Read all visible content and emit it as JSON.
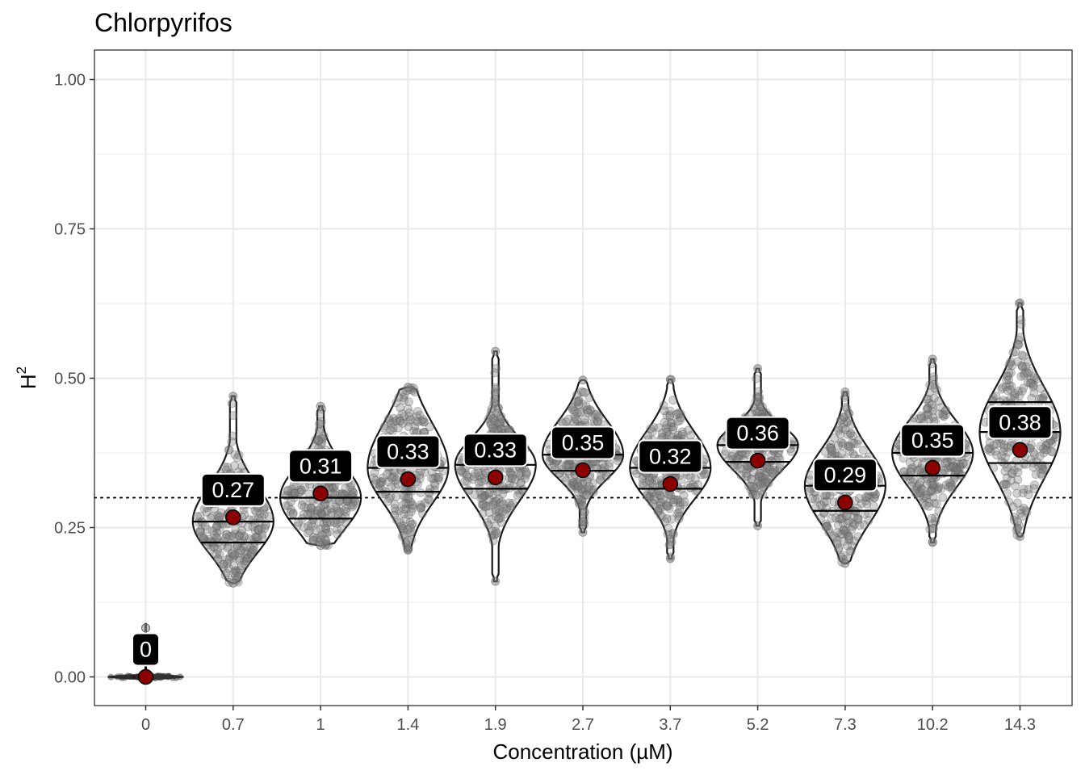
{
  "chart_data": {
    "type": "violin",
    "title": "Chlorpyrifos",
    "xlabel": "Concentration (µM)",
    "ylabel": "H",
    "ylabel_superscript": "2",
    "categories": [
      "0",
      "0.7",
      "1",
      "1.4",
      "1.9",
      "2.7",
      "3.7",
      "5.2",
      "7.3",
      "10.2",
      "14.3"
    ],
    "ylim": [
      -0.05,
      1.05
    ],
    "yticks": [
      0.0,
      0.25,
      0.5,
      0.75,
      1.0
    ],
    "ytick_labels": [
      "0.00",
      "0.25",
      "0.50",
      "0.75",
      "1.00"
    ],
    "threshold": 0.3,
    "grid": true,
    "series": [
      {
        "category": "0",
        "mean": 0.0,
        "label": "0",
        "min": 0.0,
        "max": 0.09,
        "q1": 0.0,
        "median": 0.0,
        "q3": 0.0
      },
      {
        "category": "0.7",
        "mean": 0.267,
        "label": "0.27",
        "min": 0.157,
        "max": 0.47,
        "q1": 0.225,
        "median": 0.26,
        "q3": 0.3
      },
      {
        "category": "1",
        "mean": 0.307,
        "label": "0.31",
        "min": 0.22,
        "max": 0.453,
        "q1": 0.265,
        "median": 0.3,
        "q3": 0.335
      },
      {
        "category": "1.4",
        "mean": 0.331,
        "label": "0.33",
        "min": 0.212,
        "max": 0.485,
        "q1": 0.31,
        "median": 0.35,
        "q3": 0.4
      },
      {
        "category": "1.9",
        "mean": 0.334,
        "label": "0.33",
        "min": 0.16,
        "max": 0.545,
        "q1": 0.315,
        "median": 0.355,
        "q3": 0.385
      },
      {
        "category": "2.7",
        "mean": 0.346,
        "label": "0.35",
        "min": 0.242,
        "max": 0.497,
        "q1": 0.345,
        "median": 0.372,
        "q3": 0.41
      },
      {
        "category": "3.7",
        "mean": 0.323,
        "label": "0.32",
        "min": 0.198,
        "max": 0.498,
        "q1": 0.315,
        "median": 0.35,
        "q3": 0.39
      },
      {
        "category": "5.2",
        "mean": 0.362,
        "label": "0.36",
        "min": 0.253,
        "max": 0.516,
        "q1": 0.36,
        "median": 0.388,
        "q3": 0.41
      },
      {
        "category": "7.3",
        "mean": 0.292,
        "label": "0.29",
        "min": 0.19,
        "max": 0.477,
        "q1": 0.278,
        "median": 0.32,
        "q3": 0.36
      },
      {
        "category": "10.2",
        "mean": 0.35,
        "label": "0.35",
        "min": 0.225,
        "max": 0.532,
        "q1": 0.337,
        "median": 0.375,
        "q3": 0.41
      },
      {
        "category": "14.3",
        "mean": 0.38,
        "label": "0.38",
        "min": 0.235,
        "max": 0.626,
        "q1": 0.358,
        "median": 0.41,
        "q3": 0.46
      }
    ],
    "colors": {
      "mean_point": "#8b0000",
      "label_bg": "#000000",
      "label_text": "#ffffff",
      "points": "#7f7f7f",
      "violin_outline": "#1a1a1a",
      "grid": "#ebebeb",
      "panel_border": "#333333"
    }
  }
}
